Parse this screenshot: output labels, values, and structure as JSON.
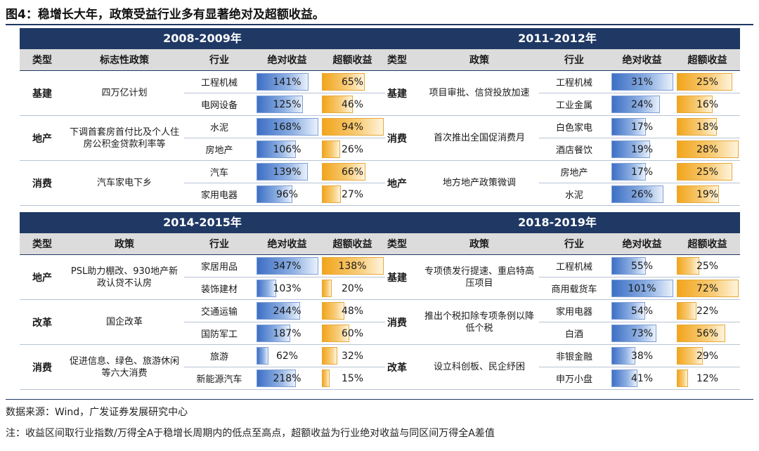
{
  "title": "图4：稳增长大年，政策受益行业多有显著绝对及超额收益。",
  "colors": {
    "header": "#1f3864",
    "abs_bar": "#3d6fc5",
    "excess_bar": "#f2a51c"
  },
  "panels": [
    {
      "period": "2008-2009年",
      "headers": [
        "类型",
        "标志性政策",
        "行业",
        "绝对收益",
        "超额收益"
      ],
      "groups": [
        {
          "type": "基建",
          "policy": "四万亿计划",
          "rows": [
            {
              "industry": "工程机械",
              "abs": "141%",
              "abs_val": 141,
              "exc": "65%",
              "exc_val": 65
            },
            {
              "industry": "电网设备",
              "abs": "125%",
              "abs_val": 125,
              "exc": "46%",
              "exc_val": 46
            }
          ]
        },
        {
          "type": "地产",
          "policy": "下调首套房首付比及个人住房公积金贷款利率等",
          "rows": [
            {
              "industry": "水泥",
              "abs": "168%",
              "abs_val": 168,
              "exc": "94%",
              "exc_val": 94
            },
            {
              "industry": "房地产",
              "abs": "106%",
              "abs_val": 106,
              "exc": "26%",
              "exc_val": 26
            }
          ]
        },
        {
          "type": "消费",
          "policy": "汽车家电下乡",
          "rows": [
            {
              "industry": "汽车",
              "abs": "139%",
              "abs_val": 139,
              "exc": "66%",
              "exc_val": 66
            },
            {
              "industry": "家用电器",
              "abs": "96%",
              "abs_val": 96,
              "exc": "27%",
              "exc_val": 27
            }
          ]
        }
      ]
    },
    {
      "period": "2011-2012年",
      "headers": [
        "类型",
        "政策",
        "行业",
        "绝对收益",
        "超额收益"
      ],
      "groups": [
        {
          "type": "基建",
          "policy": "项目审批、信贷投放加速",
          "rows": [
            {
              "industry": "工程机械",
              "abs": "31%",
              "abs_val": 31,
              "exc": "25%",
              "exc_val": 25
            },
            {
              "industry": "工业金属",
              "abs": "24%",
              "abs_val": 24,
              "exc": "16%",
              "exc_val": 16
            }
          ]
        },
        {
          "type": "消费",
          "policy": "首次推出全国促消费月",
          "rows": [
            {
              "industry": "白色家电",
              "abs": "17%",
              "abs_val": 17,
              "exc": "18%",
              "exc_val": 18
            },
            {
              "industry": "酒店餐饮",
              "abs": "19%",
              "abs_val": 19,
              "exc": "28%",
              "exc_val": 28
            }
          ]
        },
        {
          "type": "地产",
          "policy": "地方地产政策微调",
          "rows": [
            {
              "industry": "房地产",
              "abs": "17%",
              "abs_val": 17,
              "exc": "25%",
              "exc_val": 25
            },
            {
              "industry": "水泥",
              "abs": "26%",
              "abs_val": 26,
              "exc": "19%",
              "exc_val": 19
            }
          ]
        }
      ]
    },
    {
      "period": "2014-2015年",
      "headers": [
        "类型",
        "政策",
        "行业",
        "绝对收益",
        "超额收益"
      ],
      "groups": [
        {
          "type": "地产",
          "policy": "PSL助力棚改、930地产新政认贷不认房",
          "rows": [
            {
              "industry": "家居用品",
              "abs": "347%",
              "abs_val": 347,
              "exc": "138%",
              "exc_val": 138
            },
            {
              "industry": "装饰建材",
              "abs": "103%",
              "abs_val": 103,
              "exc": "20%",
              "exc_val": 20
            }
          ]
        },
        {
          "type": "改革",
          "policy": "国企改革",
          "rows": [
            {
              "industry": "交通运输",
              "abs": "244%",
              "abs_val": 244,
              "exc": "48%",
              "exc_val": 48
            },
            {
              "industry": "国防军工",
              "abs": "187%",
              "abs_val": 187,
              "exc": "60%",
              "exc_val": 60
            }
          ]
        },
        {
          "type": "消费",
          "policy": "促进信息、绿色、旅游休闲等六大消费",
          "rows": [
            {
              "industry": "旅游",
              "abs": "62%",
              "abs_val": 62,
              "exc": "32%",
              "exc_val": 32
            },
            {
              "industry": "新能源汽车",
              "abs": "218%",
              "abs_val": 218,
              "exc": "15%",
              "exc_val": 15
            }
          ]
        }
      ]
    },
    {
      "period": "2018-2019年",
      "headers": [
        "类型",
        "政策",
        "行业",
        "绝对收益",
        "超额收益"
      ],
      "groups": [
        {
          "type": "基建",
          "policy": "专项债发行提速、重启特高压项目",
          "rows": [
            {
              "industry": "工程机械",
              "abs": "55%",
              "abs_val": 55,
              "exc": "25%",
              "exc_val": 25
            },
            {
              "industry": "商用载货车",
              "abs": "101%",
              "abs_val": 101,
              "exc": "72%",
              "exc_val": 72
            }
          ]
        },
        {
          "type": "消费",
          "policy": "推出个税扣除专项条例以降低个税",
          "rows": [
            {
              "industry": "家用电器",
              "abs": "54%",
              "abs_val": 54,
              "exc": "22%",
              "exc_val": 22
            },
            {
              "industry": "白酒",
              "abs": "73%",
              "abs_val": 73,
              "exc": "56%",
              "exc_val": 56
            }
          ]
        },
        {
          "type": "改革",
          "policy": "设立科创板、民企纾困",
          "rows": [
            {
              "industry": "非银金融",
              "abs": "38%",
              "abs_val": 38,
              "exc": "29%",
              "exc_val": 29
            },
            {
              "industry": "申万小盘",
              "abs": "41%",
              "abs_val": 41,
              "exc": "12%",
              "exc_val": 12
            }
          ]
        }
      ]
    }
  ],
  "source": "数据来源：Wind，广发证券发展研究中心",
  "note": "注：收益区间取行业指数/万得全A于稳增长周期内的低点至高点，超额收益为行业绝对收益与同区间万得全A差值"
}
